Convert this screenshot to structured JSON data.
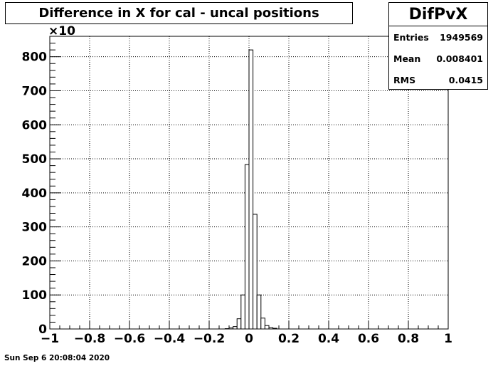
{
  "chart_data": {
    "type": "bar",
    "title": "Difference in X for cal - uncal positions",
    "xlabel": "",
    "ylabel": "",
    "xlim": [
      -1,
      1
    ],
    "ylim": [
      0,
      860
    ],
    "y_multiplier": "×10",
    "grid": true,
    "bin_width": 0.02,
    "x_ticks": [
      -1,
      -0.8,
      -0.6,
      -0.4,
      -0.2,
      0,
      0.2,
      0.4,
      0.6,
      0.8,
      1
    ],
    "x_tick_labels": [
      "−1",
      "−0.8",
      "−0.6",
      "−0.4",
      "−0.2",
      "0",
      "0.2",
      "0.4",
      "0.6",
      "0.8",
      "1"
    ],
    "y_ticks": [
      0,
      100,
      200,
      300,
      400,
      500,
      600,
      700,
      800
    ],
    "y_tick_labels": [
      "0",
      "100",
      "200",
      "300",
      "400",
      "500",
      "600",
      "700",
      "800"
    ],
    "bins": [
      {
        "x0": -0.12,
        "x1": -0.1,
        "value": 1
      },
      {
        "x0": -0.1,
        "x1": -0.08,
        "value": 3
      },
      {
        "x0": -0.08,
        "x1": -0.06,
        "value": 7
      },
      {
        "x0": -0.06,
        "x1": -0.04,
        "value": 30
      },
      {
        "x0": -0.04,
        "x1": -0.02,
        "value": 100
      },
      {
        "x0": -0.02,
        "x1": 0.0,
        "value": 483
      },
      {
        "x0": 0.0,
        "x1": 0.02,
        "value": 820
      },
      {
        "x0": 0.02,
        "x1": 0.04,
        "value": 337
      },
      {
        "x0": 0.04,
        "x1": 0.06,
        "value": 100
      },
      {
        "x0": 0.06,
        "x1": 0.08,
        "value": 32
      },
      {
        "x0": 0.08,
        "x1": 0.1,
        "value": 10
      },
      {
        "x0": 0.1,
        "x1": 0.12,
        "value": 4
      },
      {
        "x0": 0.12,
        "x1": 0.14,
        "value": 2
      }
    ]
  },
  "stats": {
    "name": "DifPvX",
    "entries_label": "Entries",
    "entries_value": "1949569",
    "mean_label": "Mean",
    "mean_value": "0.008401",
    "rms_label": "RMS",
    "rms_value": "0.0415"
  },
  "footer": {
    "timestamp": "Sun Sep  6 20:08:04 2020"
  }
}
